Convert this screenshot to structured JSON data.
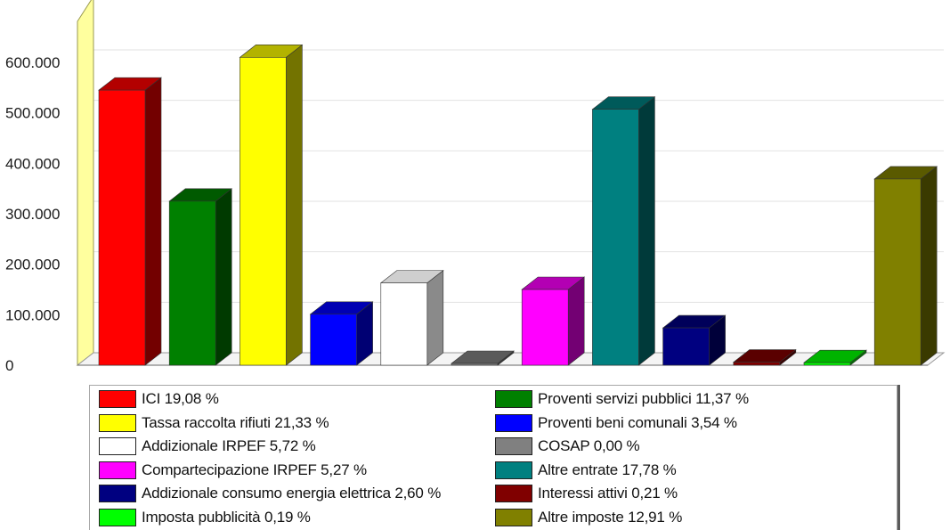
{
  "chart_data": {
    "type": "bar",
    "categories": [
      "ICI 19,08 %",
      "Proventi servizi pubblici 11,37 %",
      "Tassa raccolta rifiuti 21,33 %",
      "Proventi beni comunali 3,54 %",
      "Addizionale IRPEF 5,72 %",
      "COSAP 0,00 %",
      "Compartecipazione IRPEF 5,27 %",
      "Altre entrate 17,78 %",
      "Addizionale consumo energia elettrica 2,60 %",
      "Interessi attivi 0,21 %",
      "Imposta pubblicità 0,19 %",
      "Altre imposte 12,91 %"
    ],
    "values": [
      545000,
      325000,
      610000,
      101000,
      163000,
      0,
      150000,
      507000,
      74000,
      6000,
      5000,
      369000
    ],
    "colors": [
      "#ff0000",
      "#008000",
      "#ffff00",
      "#0000ff",
      "#ffffff",
      "#808080",
      "#ff00ff",
      "#008080",
      "#000080",
      "#800000",
      "#00ff00",
      "#808000"
    ],
    "ylim": [
      0,
      600000
    ],
    "y_ticks": [
      "0",
      "100.000",
      "200.000",
      "300.000",
      "400.000",
      "500.000",
      "600.000"
    ],
    "grid": true,
    "legend_position": "bottom",
    "title": "",
    "xlabel": "",
    "ylabel": ""
  }
}
